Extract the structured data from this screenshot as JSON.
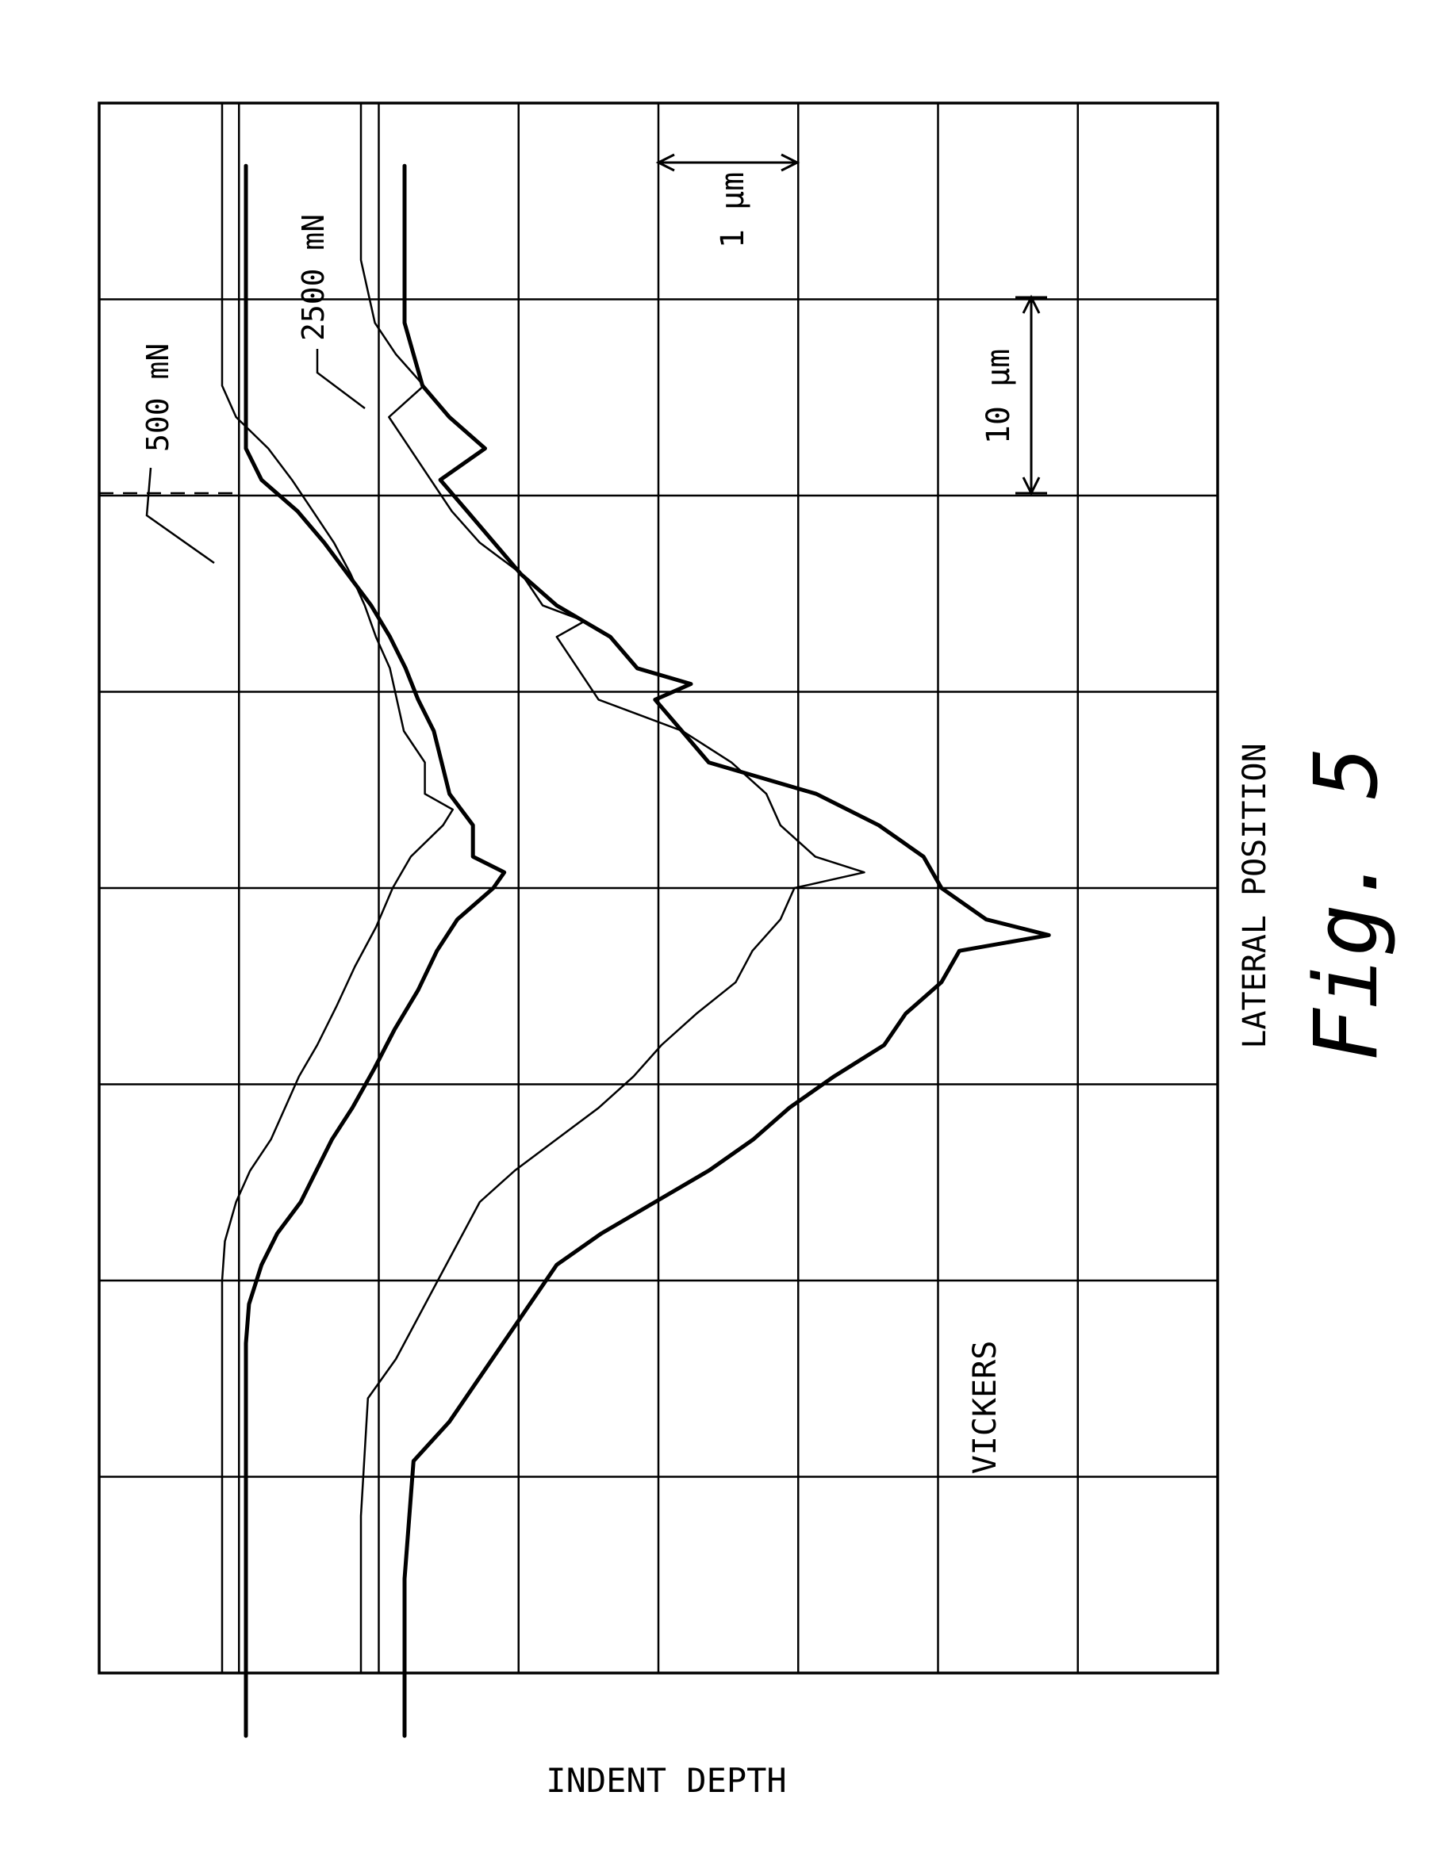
{
  "chart_data": {
    "type": "line",
    "title": "",
    "xlabel": "LATERAL POSITION",
    "ylabel": "INDENT DEPTH",
    "grid": true,
    "orientation": "rotated 90 degrees (lateral position runs down the page, depth increases to the right)",
    "annotations": {
      "figure_label": "Fig. 5",
      "indenter": "VICKERS",
      "lateral_scale": "10 μm",
      "depth_scale": "1 μm",
      "load_label_low": "500 mN",
      "load_label_high": "2500 mN"
    },
    "x_units": "μm (lateral, relative)",
    "y_units": "μm (depth, relative)",
    "series": [
      {
        "name": "500 mN",
        "x": [
          0,
          10,
          15,
          20,
          25,
          27.5,
          30,
          32,
          34,
          36,
          38,
          40,
          42.5,
          45,
          47.5,
          50,
          52,
          54,
          55,
          56,
          58,
          60,
          62,
          64,
          66,
          68,
          70,
          72,
          74,
          76,
          78,
          80,
          82,
          85,
          90,
          95,
          100
        ],
        "y": [
          0,
          0,
          0,
          0,
          0,
          0.02,
          0.1,
          0.2,
          0.35,
          0.45,
          0.55,
          0.68,
          0.82,
          0.95,
          1.1,
          1.22,
          1.35,
          1.58,
          1.65,
          1.45,
          1.45,
          1.3,
          1.25,
          1.2,
          1.1,
          1.02,
          0.92,
          0.8,
          0.65,
          0.5,
          0.33,
          0.1,
          0,
          0,
          0,
          0,
          0
        ]
      },
      {
        "name": "2500 mN",
        "x": [
          0,
          10,
          17.5,
          20,
          25,
          30,
          32,
          34,
          36,
          38,
          40,
          42,
          44,
          46,
          48,
          50,
          51,
          52,
          54,
          56,
          58,
          60,
          61,
          62,
          64,
          66,
          67,
          68,
          70,
          71,
          72,
          74,
          76,
          78,
          80,
          82,
          84,
          86,
          88,
          90,
          95,
          100
        ],
        "y": [
          0,
          0,
          0.05,
          0.25,
          0.55,
          0.85,
          1.1,
          1.4,
          1.7,
          1.95,
          2.15,
          2.4,
          2.68,
          2.8,
          3.0,
          3.1,
          3.6,
          3.25,
          3.0,
          2.9,
          2.65,
          2.3,
          2.0,
          1.7,
          1.55,
          1.4,
          1.6,
          1.3,
          1.15,
          1.0,
          0.85,
          0.65,
          0.5,
          0.35,
          0.2,
          0.45,
          0.25,
          0.1,
          0.05,
          0,
          0,
          0
        ]
      }
    ]
  }
}
